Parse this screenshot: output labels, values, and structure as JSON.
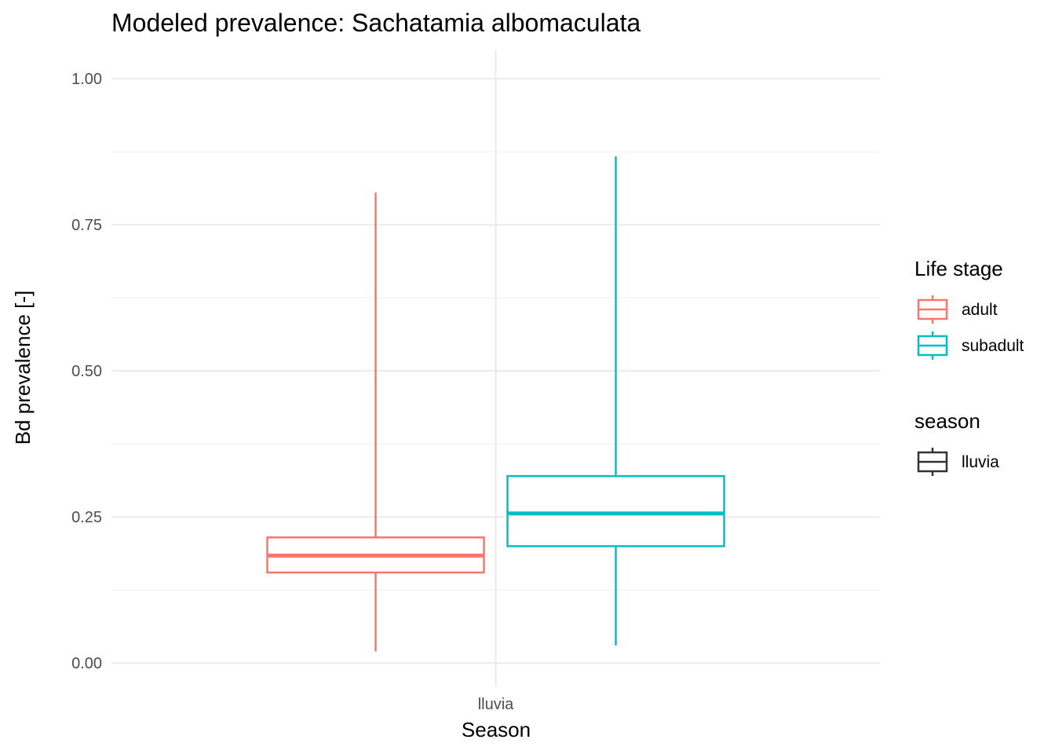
{
  "chart_data": {
    "type": "boxplot",
    "title": "Modeled prevalence: Sachatamia albomaculata",
    "xlabel": "Season",
    "ylabel": "Bd prevalence [-]",
    "categories": [
      "lluvia"
    ],
    "ylim": [
      -0.04,
      1.05
    ],
    "y_ticks": [
      0.0,
      0.25,
      0.5,
      0.75,
      1.0
    ],
    "y_tick_labels": [
      "0.00",
      "0.25",
      "0.50",
      "0.75",
      "1.00"
    ],
    "grid": true,
    "series": [
      {
        "name": "adult",
        "color": "#F8766D",
        "category": "lluvia",
        "min": 0.02,
        "q1": 0.155,
        "median": 0.184,
        "q3": 0.215,
        "max": 0.805
      },
      {
        "name": "subadult",
        "color": "#00BFC4",
        "category": "lluvia",
        "min": 0.03,
        "q1": 0.2,
        "median": 0.256,
        "q3": 0.32,
        "max": 0.867
      }
    ],
    "legends": [
      {
        "title": "Life stage",
        "entries": [
          {
            "label": "adult",
            "color": "#F8766D"
          },
          {
            "label": "subadult",
            "color": "#00BFC4"
          }
        ]
      },
      {
        "title": "season",
        "entries": [
          {
            "label": "lluvia",
            "color": "#333333"
          }
        ]
      }
    ],
    "legend_position": "right"
  }
}
